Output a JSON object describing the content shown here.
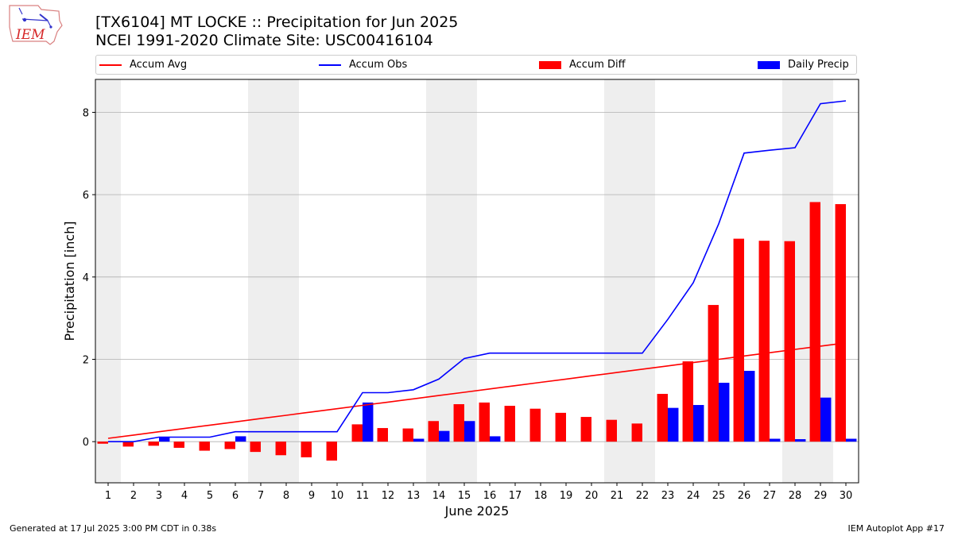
{
  "header": {
    "title_line1": "[TX6104] MT LOCKE :: Precipitation for Jun 2025",
    "title_line2": "NCEI 1991-2020 Climate Site: USC00416104"
  },
  "logo": {
    "icon": "iem-logo-icon",
    "text": "IEM",
    "color": "#d62728"
  },
  "legend": {
    "accum_avg": "Accum Avg",
    "accum_obs": "Accum Obs",
    "accum_diff": "Accum Diff",
    "daily_precip": "Daily Precip"
  },
  "footer": {
    "left": "Generated at 17 Jul 2025 3:00 PM CDT in 0.38s",
    "right": "IEM Autoplot App #17"
  },
  "colors": {
    "avg": "#ff0000",
    "obs": "#0000ff",
    "diff": "#ff0000",
    "daily": "#0000ff",
    "weekend": "#eeeeee",
    "grid": "#b0b0b0"
  },
  "chart_data": {
    "type": "bar",
    "xlabel": "June 2025",
    "ylabel": "Precipitation [inch]",
    "xlim": [
      0.5,
      30.5
    ],
    "ylim": [
      -1.0,
      8.8
    ],
    "yticks": [
      0,
      2,
      4,
      6,
      8
    ],
    "grid": true,
    "legend_position": "top",
    "weekend_shading_days": [
      1,
      7,
      8,
      14,
      15,
      21,
      22,
      28,
      29
    ],
    "days": [
      1,
      2,
      3,
      4,
      5,
      6,
      7,
      8,
      9,
      10,
      11,
      12,
      13,
      14,
      15,
      16,
      17,
      18,
      19,
      20,
      21,
      22,
      23,
      24,
      25,
      26,
      27,
      28,
      29,
      30
    ],
    "series": [
      {
        "name": "Accum Avg",
        "kind": "line",
        "values": [
          0.08,
          0.16,
          0.24,
          0.32,
          0.4,
          0.48,
          0.56,
          0.64,
          0.72,
          0.8,
          0.88,
          0.96,
          1.04,
          1.12,
          1.2,
          1.28,
          1.36,
          1.44,
          1.52,
          1.6,
          1.68,
          1.76,
          1.84,
          1.92,
          2.0,
          2.08,
          2.16,
          2.24,
          2.32,
          2.4
        ]
      },
      {
        "name": "Accum Obs",
        "kind": "line",
        "values": [
          0.0,
          0.0,
          0.11,
          0.11,
          0.11,
          0.24,
          0.24,
          0.24,
          0.24,
          0.24,
          1.19,
          1.19,
          1.26,
          1.52,
          2.02,
          2.15,
          2.15,
          2.15,
          2.15,
          2.15,
          2.15,
          2.15,
          2.97,
          3.86,
          5.29,
          7.01,
          7.08,
          7.14,
          8.21,
          8.28
        ]
      },
      {
        "name": "Accum Diff",
        "kind": "bar",
        "values": [
          -0.05,
          -0.12,
          -0.1,
          -0.15,
          -0.22,
          -0.18,
          -0.25,
          -0.33,
          -0.38,
          -0.46,
          0.42,
          0.33,
          0.32,
          0.5,
          0.91,
          0.95,
          0.87,
          0.8,
          0.7,
          0.6,
          0.53,
          0.44,
          1.16,
          1.95,
          3.32,
          4.93,
          4.88,
          4.87,
          5.82,
          5.77
        ]
      },
      {
        "name": "Daily Precip",
        "kind": "bar",
        "values": [
          0.0,
          0.0,
          0.11,
          0.0,
          0.0,
          0.13,
          0.0,
          0.0,
          0.0,
          0.0,
          0.95,
          0.0,
          0.07,
          0.26,
          0.5,
          0.13,
          0.0,
          0.0,
          0.0,
          0.0,
          0.0,
          0.0,
          0.82,
          0.89,
          1.43,
          1.72,
          0.07,
          0.06,
          1.07,
          0.07
        ]
      }
    ]
  }
}
